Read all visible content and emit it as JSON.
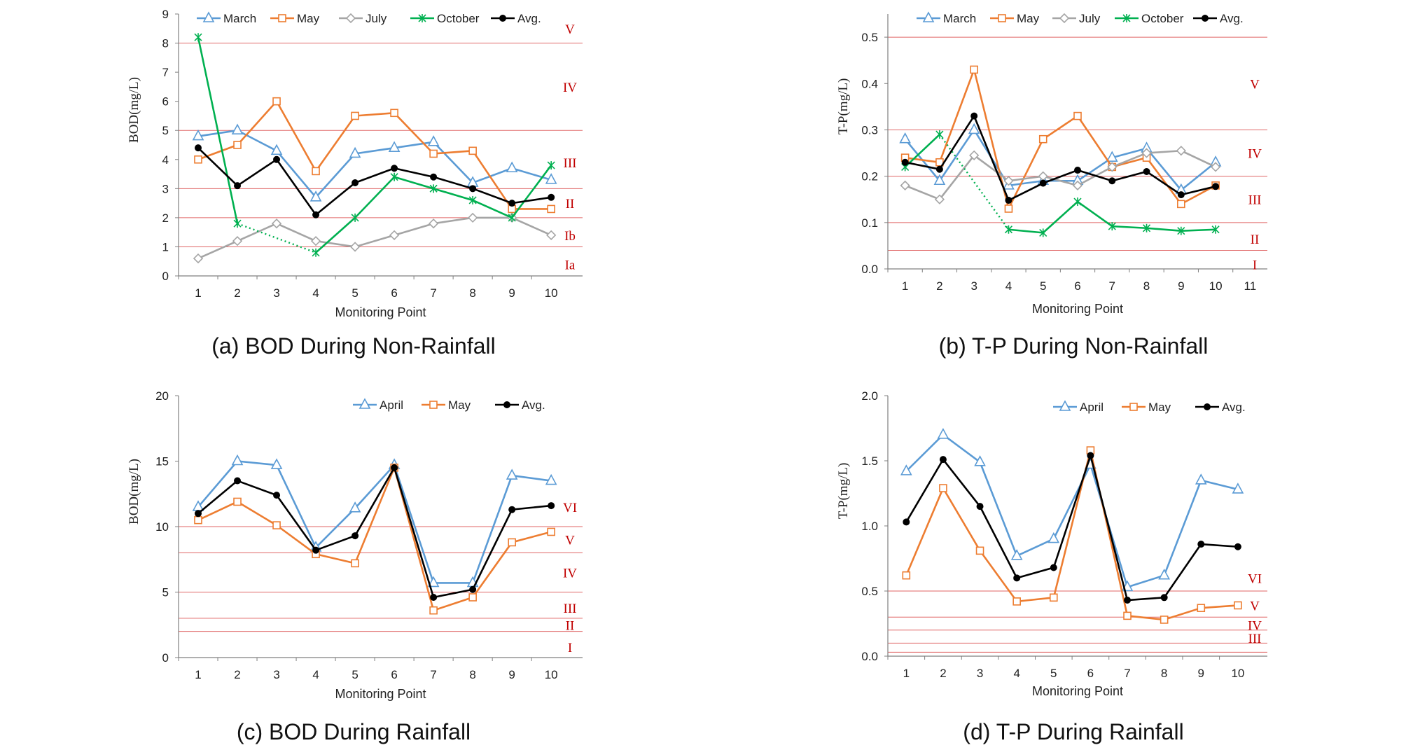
{
  "colors": {
    "march": "#5B9BD5",
    "april": "#5B9BD5",
    "may": "#ED7D31",
    "july": "#A5A5A5",
    "october": "#00B050",
    "avg": "#000000",
    "class_line": "#E06666",
    "class_text": "#C00000",
    "axis": "#7F7F7F"
  },
  "chart_data": [
    {
      "type": "line",
      "caption": "(a) BOD During Non-Rainfall",
      "xlabel": "Monitoring Point",
      "ylabel": "BOD(mg/L)",
      "x": [
        1,
        2,
        3,
        4,
        5,
        6,
        7,
        8,
        9,
        10
      ],
      "xticks": [
        "1",
        "2",
        "3",
        "4",
        "5",
        "6",
        "7",
        "8",
        "9",
        "10"
      ],
      "ylim": [
        0,
        9
      ],
      "yticks": [
        "0",
        "1",
        "2",
        "3",
        "4",
        "5",
        "6",
        "7",
        "8",
        "9"
      ],
      "series": [
        {
          "name": "March",
          "color_key": "march",
          "marker": "triangle",
          "values": [
            4.8,
            5.0,
            4.3,
            2.7,
            4.2,
            4.4,
            4.6,
            3.2,
            3.7,
            3.3
          ]
        },
        {
          "name": "May",
          "color_key": "may",
          "marker": "square",
          "values": [
            4.0,
            4.5,
            6.0,
            3.6,
            5.5,
            5.6,
            4.2,
            4.3,
            2.3,
            2.3
          ]
        },
        {
          "name": "July",
          "color_key": "july",
          "marker": "diamond",
          "values": [
            0.6,
            1.2,
            1.8,
            1.2,
            1.0,
            1.4,
            1.8,
            2.0,
            2.0,
            1.4
          ]
        },
        {
          "name": "October",
          "color_key": "october",
          "marker": "asterisk",
          "values": [
            8.2,
            1.8,
            null,
            0.8,
            2.0,
            3.4,
            3.0,
            2.6,
            2.0,
            3.8
          ],
          "dotted_gap": [
            1,
            3
          ]
        },
        {
          "name": "Avg.",
          "color_key": "avg",
          "marker": "dot",
          "values": [
            4.4,
            3.1,
            4.0,
            2.1,
            3.2,
            3.7,
            3.4,
            3.0,
            2.5,
            2.7
          ]
        }
      ],
      "class_lines": [
        1,
        2,
        3,
        5,
        8
      ],
      "class_labels": [
        {
          "text": "V",
          "y": 8.5
        },
        {
          "text": "IV",
          "y": 6.5
        },
        {
          "text": "III",
          "y": 3.9
        },
        {
          "text": "II",
          "y": 2.5
        },
        {
          "text": "Ib",
          "y": 1.4
        },
        {
          "text": "Ia",
          "y": 0.4
        }
      ]
    },
    {
      "type": "line",
      "caption": "(b) T-P During Non-Rainfall",
      "xlabel": "Monitoring Point",
      "ylabel": "T-P(mg/L)",
      "x": [
        1,
        2,
        3,
        4,
        5,
        6,
        7,
        8,
        9,
        10
      ],
      "xticks": [
        "1",
        "2",
        "3",
        "4",
        "5",
        "6",
        "7",
        "8",
        "9",
        "10",
        "11"
      ],
      "ylim": [
        0,
        0.55
      ],
      "yticks": [
        "0.0",
        "0.1",
        "0.2",
        "0.3",
        "0.4",
        "0.5"
      ],
      "series": [
        {
          "name": "March",
          "color_key": "march",
          "marker": "triangle",
          "values": [
            0.28,
            0.19,
            0.3,
            0.18,
            0.19,
            0.19,
            0.24,
            0.26,
            0.17,
            0.23
          ]
        },
        {
          "name": "May",
          "color_key": "may",
          "marker": "square",
          "values": [
            0.24,
            0.23,
            0.43,
            0.13,
            0.28,
            0.33,
            0.22,
            0.24,
            0.14,
            0.18
          ]
        },
        {
          "name": "July",
          "color_key": "july",
          "marker": "diamond",
          "values": [
            0.18,
            0.15,
            0.245,
            0.19,
            0.2,
            0.18,
            0.22,
            0.25,
            0.255,
            0.22
          ]
        },
        {
          "name": "October",
          "color_key": "october",
          "marker": "asterisk",
          "values": [
            0.22,
            0.29,
            null,
            0.085,
            0.078,
            0.145,
            0.092,
            0.088,
            0.082,
            0.085
          ],
          "dotted_gap": [
            1,
            3
          ]
        },
        {
          "name": "Avg.",
          "color_key": "avg",
          "marker": "dot",
          "values": [
            0.23,
            0.215,
            0.33,
            0.148,
            0.185,
            0.213,
            0.19,
            0.21,
            0.16,
            0.178
          ]
        }
      ],
      "class_lines": [
        0.04,
        0.1,
        0.2,
        0.3,
        0.5
      ],
      "class_labels": [
        {
          "text": "V",
          "y": 0.4
        },
        {
          "text": "IV",
          "y": 0.25
        },
        {
          "text": "III",
          "y": 0.15
        },
        {
          "text": "II",
          "y": 0.065
        },
        {
          "text": "I",
          "y": 0.01
        }
      ]
    },
    {
      "type": "line",
      "caption": "(c) BOD During Rainfall",
      "xlabel": "Monitoring Point",
      "ylabel": "BOD(mg/L)",
      "x": [
        1,
        2,
        3,
        4,
        5,
        6,
        7,
        8,
        9,
        10
      ],
      "xticks": [
        "1",
        "2",
        "3",
        "4",
        "5",
        "6",
        "7",
        "8",
        "9",
        "10"
      ],
      "ylim": [
        0,
        20
      ],
      "yticks": [
        "0",
        "5",
        "10",
        "15",
        "20"
      ],
      "series": [
        {
          "name": "April",
          "color_key": "april",
          "marker": "triangle",
          "values": [
            11.5,
            15.0,
            14.7,
            8.4,
            11.4,
            14.7,
            5.7,
            5.7,
            13.9,
            13.5
          ]
        },
        {
          "name": "May",
          "color_key": "may",
          "marker": "square",
          "values": [
            10.5,
            11.9,
            10.1,
            7.9,
            7.2,
            14.5,
            3.6,
            4.6,
            8.8,
            9.6
          ]
        },
        {
          "name": "Avg.",
          "color_key": "avg",
          "marker": "dot",
          "values": [
            11.0,
            13.5,
            12.4,
            8.2,
            9.3,
            14.5,
            4.6,
            5.2,
            11.3,
            11.6
          ]
        }
      ],
      "class_lines": [
        2,
        3,
        5,
        8,
        10
      ],
      "class_labels": [
        {
          "text": "VI",
          "y": 11.5
        },
        {
          "text": "V",
          "y": 9.0
        },
        {
          "text": "IV",
          "y": 6.5
        },
        {
          "text": "III",
          "y": 3.8
        },
        {
          "text": "II",
          "y": 2.5
        },
        {
          "text": "I",
          "y": 0.8
        }
      ]
    },
    {
      "type": "line",
      "caption": "(d) T-P During Rainfall",
      "xlabel": "Monitoring Point",
      "ylabel": "T-P(mg/L)",
      "x": [
        1,
        2,
        3,
        4,
        5,
        6,
        7,
        8,
        9,
        10
      ],
      "xticks": [
        "1",
        "2",
        "3",
        "4",
        "5",
        "6",
        "7",
        "8",
        "9",
        "10"
      ],
      "ylim": [
        0,
        2.0
      ],
      "yticks": [
        "0.0",
        "0.5",
        "1.0",
        "1.5",
        "2.0"
      ],
      "series": [
        {
          "name": "April",
          "color_key": "april",
          "marker": "triangle",
          "values": [
            1.42,
            1.7,
            1.49,
            0.77,
            0.9,
            1.47,
            0.53,
            0.62,
            1.35,
            1.28
          ]
        },
        {
          "name": "May",
          "color_key": "may",
          "marker": "square",
          "values": [
            0.62,
            1.29,
            0.81,
            0.42,
            0.45,
            1.58,
            0.31,
            0.28,
            0.37,
            0.39
          ]
        },
        {
          "name": "Avg.",
          "color_key": "avg",
          "marker": "dot",
          "values": [
            1.03,
            1.51,
            1.15,
            0.6,
            0.68,
            1.54,
            0.43,
            0.45,
            0.86,
            0.84
          ]
        }
      ],
      "class_lines": [
        0.03,
        0.1,
        0.2,
        0.3,
        0.5
      ],
      "class_labels": [
        {
          "text": "VI",
          "y": 0.6
        },
        {
          "text": "V",
          "y": 0.39
        },
        {
          "text": "IV",
          "y": 0.24
        },
        {
          "text": "III",
          "y": 0.14
        }
      ]
    }
  ]
}
